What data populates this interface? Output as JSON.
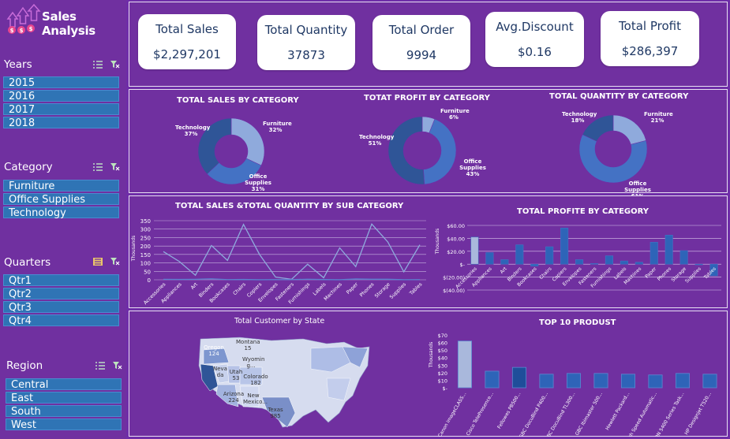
{
  "app": {
    "title": "Sales Analysis"
  },
  "slicers": {
    "years": {
      "title": "Years",
      "items": [
        "2015",
        "2016",
        "2017",
        "2018"
      ]
    },
    "category": {
      "title": "Category",
      "items": [
        "Furniture",
        "Office Supplies",
        "Technology"
      ]
    },
    "quarters": {
      "title": "Quarters",
      "items": [
        "Qtr1",
        "Qtr2",
        "Qtr3",
        "Qtr4"
      ]
    },
    "region": {
      "title": "Region",
      "items": [
        "Central",
        "East",
        "South",
        "West"
      ]
    }
  },
  "kpis": [
    {
      "label": "Total Sales",
      "value": "$2,297,201"
    },
    {
      "label": "Total Quantity",
      "value": "37873"
    },
    {
      "label": "Total Order",
      "value": "9994"
    },
    {
      "label": "Avg.Discount",
      "value": "$0.16"
    },
    {
      "label": "Total Profit",
      "value": "$286,397"
    }
  ],
  "chart_data": [
    {
      "type": "pie",
      "variant": "doughnut",
      "title": "TOTAL SALES BY CATEGORY",
      "slices": [
        {
          "label": "Furniture",
          "pct": "32%",
          "value": 32
        },
        {
          "label": "Office Supplies",
          "pct": "31%",
          "value": 31
        },
        {
          "label": "Technology",
          "pct": "37%",
          "value": 37
        }
      ],
      "colors": [
        "#8faadc",
        "#4472c4",
        "#2f5597"
      ]
    },
    {
      "type": "pie",
      "variant": "doughnut",
      "title": "TOTAT PROFIT BY CATEGORY",
      "slices": [
        {
          "label": "Furniture",
          "pct": "6%",
          "value": 6
        },
        {
          "label": "Office Supplies",
          "pct": "43%",
          "value": 43
        },
        {
          "label": "Technology",
          "pct": "51%",
          "value": 51
        }
      ],
      "colors": [
        "#8faadc",
        "#4472c4",
        "#2f5597"
      ]
    },
    {
      "type": "pie",
      "variant": "doughnut",
      "title": "TOTAL QUANTITY BY CATEGORY",
      "slices": [
        {
          "label": "Furniture",
          "pct": "21%",
          "value": 21
        },
        {
          "label": "Office Supplies",
          "pct": "61%",
          "value": 61
        },
        {
          "label": "Technology",
          "pct": "18%",
          "value": 18
        }
      ],
      "colors": [
        "#8faadc",
        "#4472c4",
        "#2f5597"
      ]
    },
    {
      "type": "line",
      "title": "TOTAL SALES &TOTAL QUANTITY BY SUB CATEGORY",
      "ylabel": "Thousands",
      "ylim": [
        0,
        350
      ],
      "yticks": [
        "350",
        "300",
        "250",
        "200",
        "150",
        "100",
        "50",
        "0"
      ],
      "categories": [
        "Accessories",
        "Appliances",
        "Art",
        "Binders",
        "Bookcases",
        "Chairs",
        "Copiers",
        "Envelopes",
        "Fasteners",
        "Furnishings",
        "Labels",
        "Machines",
        "Paper",
        "Phones",
        "Storage",
        "Supplies",
        "Tables"
      ],
      "series": [
        {
          "values": [
            167,
            108,
            27,
            203,
            115,
            328,
            150,
            16,
            3,
            92,
            12,
            189,
            78,
            330,
            224,
            47,
            207
          ]
        },
        {
          "values": [
            3,
            2,
            3,
            6,
            1,
            2,
            0.2,
            1,
            1,
            3.5,
            1.4,
            0.4,
            5,
            3.3,
            3.2,
            0.6,
            1.2
          ]
        }
      ]
    },
    {
      "type": "bar",
      "title": "TOTAL PROFITE BY CATEGORY",
      "ylabel": "Thousands",
      "ylim": [
        -40,
        60
      ],
      "yticks": [
        "$60.00",
        "$40.00",
        "$20.00",
        "$-",
        "$(20.00)",
        "$(40.00)"
      ],
      "categories": [
        "Accessories",
        "Appliances",
        "Art",
        "Binders",
        "Bookcases",
        "Chairs",
        "Copiers",
        "Envelopes",
        "Fasteners",
        "Furnishings",
        "Labels",
        "Machines",
        "Paper",
        "Phones",
        "Storage",
        "Supplies",
        "Tables"
      ],
      "values": [
        42,
        18,
        7,
        30,
        -3,
        27,
        56,
        7,
        1,
        13,
        5,
        3,
        34,
        45,
        21,
        -1,
        -18
      ]
    },
    {
      "type": "map",
      "title": "Total Customer by State",
      "labels": [
        {
          "state": "Oregon",
          "value": "124"
        },
        {
          "state": "Montana",
          "value": "15"
        },
        {
          "state": "Wyomin g...",
          "value": ""
        },
        {
          "state": "Neva da",
          "value": ""
        },
        {
          "state": "Utah",
          "value": "53"
        },
        {
          "state": "Colorado",
          "value": "182"
        },
        {
          "state": "Arizona",
          "value": "224"
        },
        {
          "state": "New Mexico...",
          "value": ""
        },
        {
          "state": "Texas",
          "value": "985"
        }
      ]
    },
    {
      "type": "bar",
      "title": "TOP 10 PRODUST",
      "ylabel": "Thousands",
      "ylim": [
        0,
        70
      ],
      "yticks": [
        "$70",
        "$60",
        "$50",
        "$40",
        "$30",
        "$20",
        "$10",
        "$-"
      ],
      "categories": [
        "Canon imageCLASS...",
        "Cisco TelePresence...",
        "Fellowes PB500...",
        "GBC DocuBind P400...",
        "GBC DocuBind TL300...",
        "GBC Ibimaster 500...",
        "Hewlett Packard...",
        "High Speed Automatic...",
        "HON 5400 Series Task...",
        "HP Designjet T520..."
      ],
      "values": [
        62,
        22,
        27,
        18,
        19,
        19,
        18,
        17,
        19,
        18
      ]
    }
  ]
}
